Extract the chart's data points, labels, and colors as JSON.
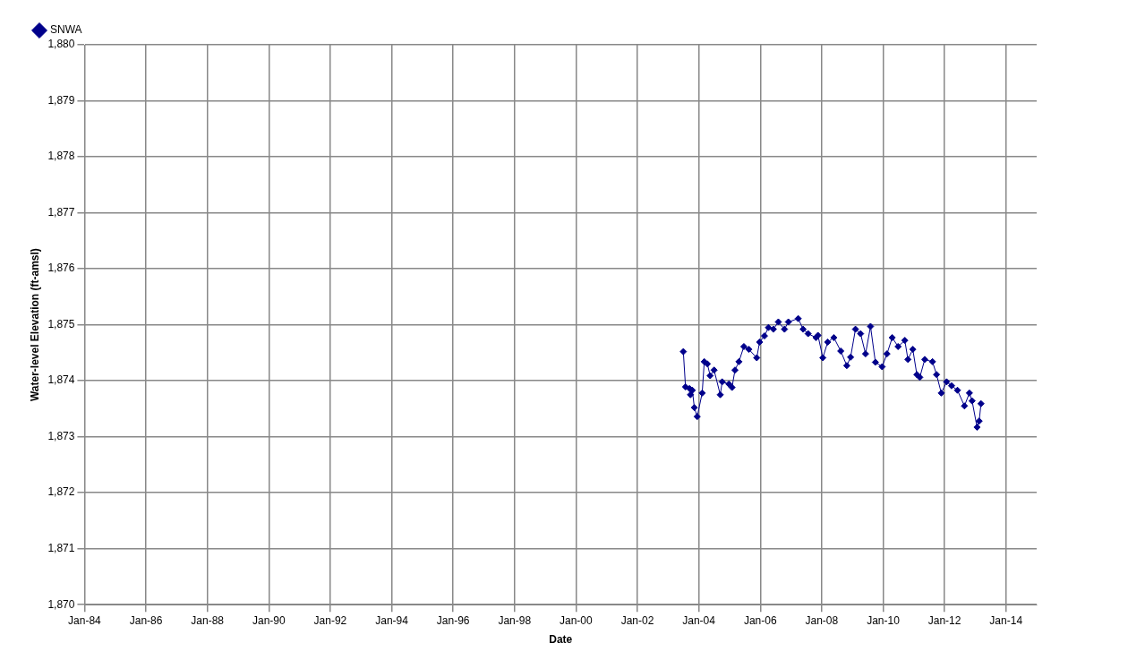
{
  "chart_data": {
    "type": "line",
    "xlabel": "Date",
    "ylabel": "Water-level Elevation (ft-amsl)",
    "x": [
      "2003-07-01",
      "2003-07-27",
      "2003-09-12",
      "2003-09-24",
      "2003-10-16",
      "2003-11-09",
      "2003-12-13",
      "2004-02-10",
      "2004-03-06",
      "2004-04-12",
      "2004-05-15",
      "2004-07-01",
      "2004-09-12",
      "2004-10-05",
      "2004-12-24",
      "2005-01-30",
      "2005-03-06",
      "2005-04-22",
      "2005-06-20",
      "2005-08-18",
      "2005-11-20",
      "2005-12-24",
      "2006-02-20",
      "2006-04-08",
      "2006-06-06",
      "2006-08-04",
      "2006-10-16",
      "2006-12-01",
      "2007-03-28",
      "2007-05-26",
      "2007-07-24",
      "2007-10-26",
      "2007-11-18",
      "2008-01-15",
      "2008-03-13",
      "2008-05-25",
      "2008-08-15",
      "2008-10-26",
      "2008-12-10",
      "2009-02-06",
      "2009-04-08",
      "2009-06-06",
      "2009-08-04",
      "2009-10-01",
      "2009-12-20",
      "2010-02-16",
      "2010-04-19",
      "2010-06-28",
      "2010-09-16",
      "2010-10-23",
      "2010-12-20",
      "2011-02-06",
      "2011-03-13",
      "2011-05-11",
      "2011-08-11",
      "2011-09-28",
      "2011-11-24",
      "2012-01-26",
      "2012-03-25",
      "2012-06-03",
      "2012-08-25",
      "2012-10-23",
      "2012-11-24",
      "2013-01-22",
      "2013-02-16",
      "2013-03-10"
    ],
    "series": [
      {
        "name": "SNWA",
        "color": "#00008b",
        "values": [
          1874.52,
          1873.89,
          1873.86,
          1873.75,
          1873.83,
          1873.52,
          1873.36,
          1873.78,
          1874.34,
          1874.3,
          1874.09,
          1874.19,
          1873.75,
          1873.98,
          1873.94,
          1873.88,
          1874.19,
          1874.34,
          1874.61,
          1874.56,
          1874.41,
          1874.69,
          1874.8,
          1874.95,
          1874.92,
          1875.05,
          1874.92,
          1875.05,
          1875.11,
          1874.92,
          1874.84,
          1874.77,
          1874.81,
          1874.41,
          1874.69,
          1874.77,
          1874.53,
          1874.27,
          1874.42,
          1874.92,
          1874.84,
          1874.48,
          1874.97,
          1874.33,
          1874.25,
          1874.48,
          1874.77,
          1874.61,
          1874.72,
          1874.38,
          1874.56,
          1874.11,
          1874.06,
          1874.38,
          1874.34,
          1874.11,
          1873.78,
          1873.98,
          1873.91,
          1873.83,
          1873.55,
          1873.78,
          1873.64,
          1873.17,
          1873.28,
          1873.59
        ]
      }
    ],
    "xlim": [
      "1984-01-01",
      "2015-01-01"
    ],
    "xticks": [
      {
        "value": "1984-01-01",
        "label": "Jan-84"
      },
      {
        "value": "1986-01-01",
        "label": "Jan-86"
      },
      {
        "value": "1988-01-01",
        "label": "Jan-88"
      },
      {
        "value": "1990-01-01",
        "label": "Jan-90"
      },
      {
        "value": "1992-01-01",
        "label": "Jan-92"
      },
      {
        "value": "1994-01-01",
        "label": "Jan-94"
      },
      {
        "value": "1996-01-01",
        "label": "Jan-96"
      },
      {
        "value": "1998-01-01",
        "label": "Jan-98"
      },
      {
        "value": "2000-01-01",
        "label": "Jan-00"
      },
      {
        "value": "2002-01-01",
        "label": "Jan-02"
      },
      {
        "value": "2004-01-01",
        "label": "Jan-04"
      },
      {
        "value": "2006-01-01",
        "label": "Jan-06"
      },
      {
        "value": "2008-01-01",
        "label": "Jan-08"
      },
      {
        "value": "2010-01-01",
        "label": "Jan-10"
      },
      {
        "value": "2012-01-01",
        "label": "Jan-12"
      },
      {
        "value": "2014-01-01",
        "label": "Jan-14"
      }
    ],
    "ylim": [
      1870,
      1880
    ],
    "yticks": [
      {
        "value": 1870,
        "label": "1,870"
      },
      {
        "value": 1871,
        "label": "1,871"
      },
      {
        "value": 1872,
        "label": "1,872"
      },
      {
        "value": 1873,
        "label": "1,873"
      },
      {
        "value": 1874,
        "label": "1,874"
      },
      {
        "value": 1875,
        "label": "1,875"
      },
      {
        "value": 1876,
        "label": "1,876"
      },
      {
        "value": 1877,
        "label": "1,877"
      },
      {
        "value": 1878,
        "label": "1,878"
      },
      {
        "value": 1879,
        "label": "1,879"
      },
      {
        "value": 1880,
        "label": "1,880"
      }
    ],
    "grid": true,
    "legend": "top left",
    "marker": "diamond",
    "line_style": "solid"
  }
}
